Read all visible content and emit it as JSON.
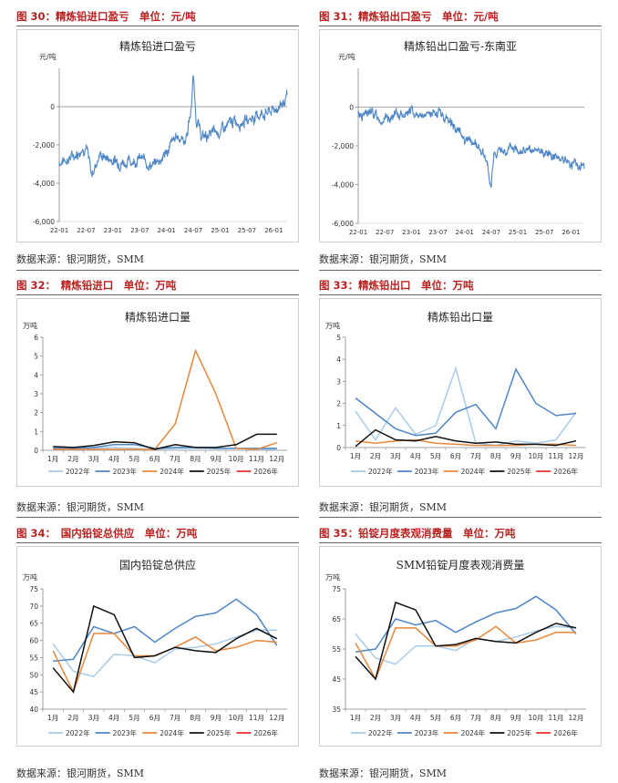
{
  "palette": {
    "title_red": "#b8211f",
    "y2022": "#a9cbe8",
    "y2023": "#4f86c6",
    "y2024": "#e9873a",
    "y2025": "#111111",
    "y2026": "#e8322a"
  },
  "source_text": "数据来源：银河期货，SMM",
  "months": [
    "1月",
    "2月",
    "3月",
    "4月",
    "5月",
    "6月",
    "7月",
    "8月",
    "9月",
    "10月",
    "11月",
    "12月"
  ],
  "figures": [
    {
      "label": "图 30：精炼铅进口盈亏　单位：元/吨"
    },
    {
      "label": "图 31：精炼铅出口盈亏　单位：元/吨"
    },
    {
      "label": "图 32：　精炼铅进口　单位：万吨"
    },
    {
      "label": "图 33：精炼铅出口　单位：万吨"
    },
    {
      "label": "图 34：　国内铅锭总供应　单位：万吨"
    },
    {
      "label": "图 35：铅锭月度表观消费量　单位：万吨"
    }
  ],
  "chart_data": [
    {
      "type": "line",
      "title": "精炼铅进口盈亏",
      "unit": "元/吨",
      "x_ticks": [
        "22-01",
        "22-07",
        "23-01",
        "23-07",
        "24-01",
        "24-07",
        "25-01",
        "25-07",
        "26-01"
      ],
      "ylim": [
        -6000,
        2000
      ],
      "y_ticks": [
        -6000,
        -4000,
        -2000,
        0
      ],
      "y_tick_labels": [
        "-6,000",
        "-4,000",
        "-2,000",
        "0"
      ],
      "anchors": [
        [
          0,
          -2900
        ],
        [
          0.5,
          -2600
        ],
        [
          1,
          -2000
        ],
        [
          1.2,
          -3600
        ],
        [
          1.5,
          -2500
        ],
        [
          2,
          -2800
        ],
        [
          2.5,
          -2900
        ],
        [
          3,
          -2700
        ],
        [
          3.5,
          -3100
        ],
        [
          4,
          -2400
        ],
        [
          4.4,
          -1500
        ],
        [
          4.7,
          -1800
        ],
        [
          4.9,
          -400
        ],
        [
          5.0,
          1600
        ],
        [
          5.1,
          -500
        ],
        [
          5.3,
          -1600
        ],
        [
          6,
          -1300
        ],
        [
          6.5,
          -800
        ],
        [
          7,
          -700
        ],
        [
          7.5,
          -400
        ],
        [
          8,
          -200
        ],
        [
          8.5,
          400
        ]
      ],
      "noise": 320,
      "seed": 7
    },
    {
      "type": "line",
      "title": "精炼铅出口盈亏-东南亚",
      "unit": "元/吨",
      "x_ticks": [
        "22-01",
        "22-07",
        "23-01",
        "23-07",
        "24-01",
        "24-07",
        "25-01",
        "25-07",
        "26-01"
      ],
      "ylim": [
        -6000,
        2000
      ],
      "y_ticks": [
        -6000,
        -4000,
        -2000,
        0
      ],
      "y_tick_labels": [
        "-6,000",
        "-4,000",
        "-2,000",
        "0"
      ],
      "anchors": [
        [
          0,
          -400
        ],
        [
          0.5,
          -300
        ],
        [
          1,
          -700
        ],
        [
          1.5,
          -400
        ],
        [
          2,
          -200
        ],
        [
          2.5,
          -500
        ],
        [
          3,
          -300
        ],
        [
          3.5,
          -800
        ],
        [
          4,
          -1600
        ],
        [
          4.5,
          -2000
        ],
        [
          4.8,
          -2700
        ],
        [
          5.0,
          -4300
        ],
        [
          5.1,
          -2400
        ],
        [
          5.4,
          -2300
        ],
        [
          6,
          -2100
        ],
        [
          6.5,
          -2400
        ],
        [
          7,
          -2300
        ],
        [
          7.5,
          -2500
        ],
        [
          8,
          -2900
        ],
        [
          8.4,
          -3000
        ],
        [
          8.5,
          -3100
        ]
      ],
      "noise": 260,
      "seed": 13
    },
    {
      "type": "line",
      "title": "精炼铅进口量",
      "unit": "万吨",
      "ylim": [
        0,
        6
      ],
      "y_ticks": [
        0,
        1,
        2,
        3,
        4,
        5,
        6
      ],
      "legend": [
        "2022年",
        "2023年",
        "2024年",
        "2025年",
        "2026年"
      ],
      "series": [
        {
          "name": "2022年",
          "values": [
            0.15,
            0.1,
            0.1,
            0.15,
            0.1,
            0.05,
            0.1,
            0.1,
            0.1,
            0.1,
            0.05,
            0.05
          ]
        },
        {
          "name": "2023年",
          "values": [
            0.1,
            0.1,
            0.15,
            0.3,
            0.3,
            0.1,
            0.15,
            0.15,
            0.1,
            0.1,
            0.1,
            0.1
          ]
        },
        {
          "name": "2024年",
          "values": [
            0.05,
            0.05,
            0.05,
            0.05,
            0.05,
            0.05,
            1.4,
            5.3,
            3.0,
            0.1,
            0.05,
            0.4
          ]
        },
        {
          "name": "2025年",
          "values": [
            0.2,
            0.15,
            0.25,
            0.45,
            0.4,
            0.05,
            0.3,
            0.15,
            0.15,
            0.3,
            0.85,
            0.85
          ]
        },
        {
          "name": "2026年",
          "values": [
            0.05
          ]
        }
      ]
    },
    {
      "type": "line",
      "title": "精炼铅出口量",
      "unit": "万吨",
      "ylim": [
        0,
        5
      ],
      "y_ticks": [
        0,
        1,
        2,
        3,
        4,
        5
      ],
      "legend": [
        "2022年",
        "2023年",
        "2024年",
        "2025年",
        "2026年"
      ],
      "series": [
        {
          "name": "2022年",
          "values": [
            1.65,
            0.35,
            1.8,
            0.6,
            1.0,
            3.6,
            0.2,
            0.1,
            0.3,
            0.2,
            0.35,
            1.6
          ]
        },
        {
          "name": "2023年",
          "values": [
            2.25,
            1.55,
            0.85,
            0.55,
            0.65,
            1.6,
            1.95,
            0.85,
            3.55,
            2.0,
            1.45,
            1.55
          ]
        },
        {
          "name": "2024年",
          "values": [
            0.3,
            0.2,
            0.3,
            0.35,
            0.2,
            0.15,
            0.1,
            0.1,
            0.1,
            0.15,
            0.15,
            0.1
          ]
        },
        {
          "name": "2025年",
          "values": [
            0.05,
            0.8,
            0.35,
            0.3,
            0.5,
            0.3,
            0.2,
            0.25,
            0.15,
            0.15,
            0.1,
            0.3
          ]
        },
        {
          "name": "2026年",
          "values": [
            0.1
          ]
        }
      ]
    },
    {
      "type": "line",
      "title": "国内铅锭总供应",
      "unit": "万吨",
      "ylim": [
        40,
        75
      ],
      "y_ticks": [
        40,
        45,
        50,
        55,
        60,
        65,
        70,
        75
      ],
      "legend": [
        "2022年",
        "2023年",
        "2024年",
        "2025年",
        "2026年"
      ],
      "series": [
        {
          "name": "2022年",
          "values": [
            59,
            51,
            49.5,
            56,
            55.5,
            53.5,
            57.5,
            58,
            59,
            61,
            63,
            63
          ]
        },
        {
          "name": "2023年",
          "values": [
            54,
            54.5,
            64,
            62,
            64,
            59.5,
            63.5,
            67,
            68,
            72,
            67.5,
            58.5
          ]
        },
        {
          "name": "2024年",
          "values": [
            57,
            45,
            62,
            62,
            55.5,
            55.5,
            58,
            61,
            57,
            58,
            60,
            59.5
          ]
        },
        {
          "name": "2025年",
          "values": [
            52,
            45,
            70,
            67.5,
            55,
            55.5,
            58,
            57,
            56.5,
            60.5,
            63.5,
            60.5
          ]
        },
        {
          "name": "2026年",
          "values": []
        }
      ]
    },
    {
      "type": "line",
      "title": "SMM铅锭月度表观消费量",
      "unit": "万吨",
      "ylim": [
        35,
        75
      ],
      "y_ticks": [
        35,
        45,
        55,
        65,
        75
      ],
      "legend": [
        "2022年",
        "2023年",
        "2024年",
        "2025年",
        "2026年"
      ],
      "series": [
        {
          "name": "2022年",
          "values": [
            60,
            52,
            50,
            56,
            56,
            54.5,
            58.5,
            57.5,
            59,
            61,
            62.5,
            62
          ]
        },
        {
          "name": "2023年",
          "values": [
            54,
            55,
            65,
            63,
            64.5,
            60.5,
            64,
            67,
            68.5,
            72.5,
            68,
            60
          ]
        },
        {
          "name": "2024年",
          "values": [
            57,
            45,
            62,
            62,
            56,
            56,
            58,
            62.5,
            57,
            58,
            60.5,
            60.5
          ]
        },
        {
          "name": "2025年",
          "values": [
            52.5,
            45,
            70.5,
            68,
            56,
            56.5,
            58.5,
            57.5,
            57,
            60.5,
            63.5,
            62
          ]
        },
        {
          "name": "2026年",
          "values": []
        }
      ]
    }
  ]
}
